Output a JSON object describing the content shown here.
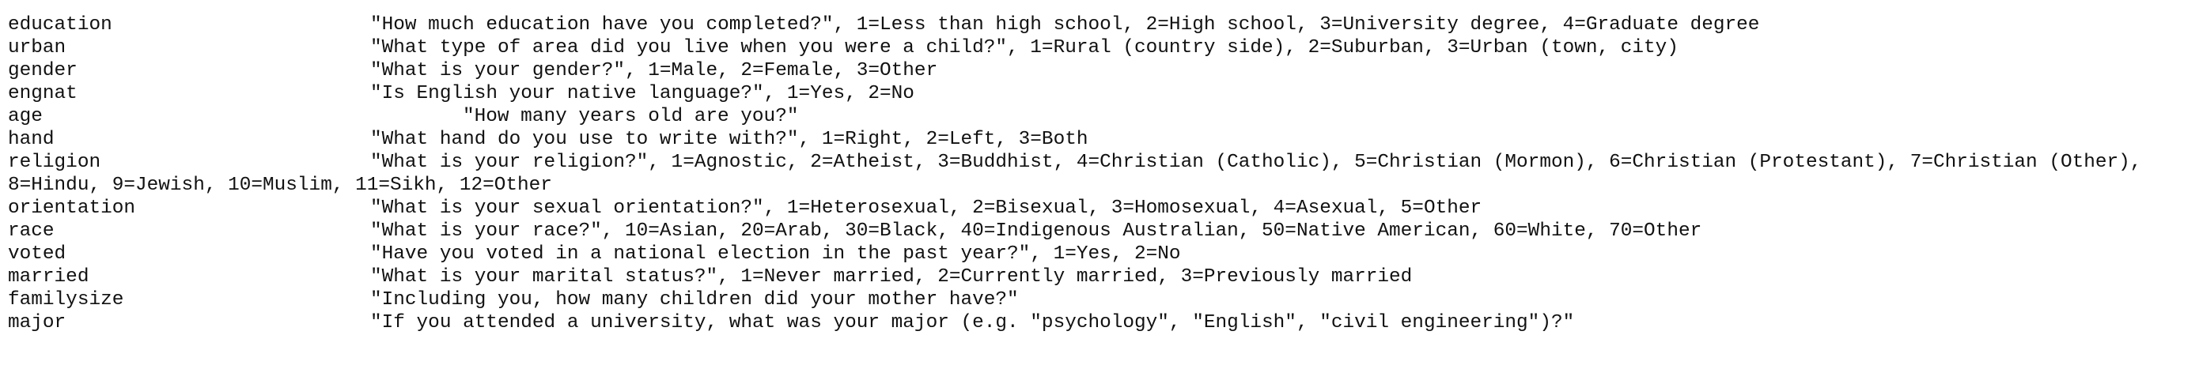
{
  "rows": [
    {
      "name": "education",
      "description": "\"How much education have you completed?\", 1=Less than high school, 2=High school, 3=University degree, 4=Graduate degree"
    },
    {
      "name": "urban",
      "description": "\"What type of area did you live when you were a child?\", 1=Rural (country side), 2=Suburban, 3=Urban (town, city)"
    },
    {
      "name": "gender",
      "description": "\"What is your gender?\", 1=Male, 2=Female, 3=Other"
    },
    {
      "name": "engnat",
      "description": "\"Is English your native language?\", 1=Yes, 2=No"
    },
    {
      "name": "age",
      "description": "\"How many years old are you?\""
    },
    {
      "name": "hand",
      "description": "\"What hand do you use to write with?\", 1=Right, 2=Left, 3=Both"
    },
    {
      "name": "religion",
      "description": "\"What is your religion?\", 1=Agnostic, 2=Atheist, 3=Buddhist, 4=Christian (Catholic), 5=Christian (Mormon), 6=Christian (Protestant), 7=Christian (Other), 8=Hindu, 9=Jewish, 10=Muslim, 11=Sikh, 12=Other"
    },
    {
      "name": "orientation",
      "description": "\"What is your sexual orientation?\", 1=Heterosexual, 2=Bisexual, 3=Homosexual, 4=Asexual, 5=Other"
    },
    {
      "name": "race",
      "description": "\"What is your race?\", 10=Asian, 20=Arab, 30=Black, 40=Indigenous Australian, 50=Native American, 60=White, 70=Other"
    },
    {
      "name": "voted",
      "description": "\"Have you voted in a national election in the past year?\", 1=Yes, 2=No"
    },
    {
      "name": "married",
      "description": "\"What is your marital status?\", 1=Never married, 2=Currently married, 3=Previously married"
    },
    {
      "name": "familysize",
      "description": "\"Including you, how many children did your mother have?\""
    },
    {
      "name": "major",
      "description": "\"If you attended a university, what was your major (e.g. \"psychology\", \"English\", \"civil engineering\")?\""
    }
  ]
}
